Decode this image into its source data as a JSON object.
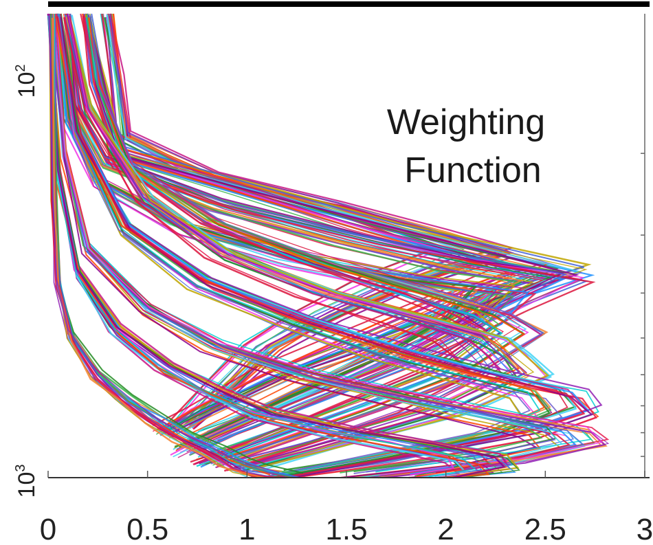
{
  "chart_data": {
    "type": "line",
    "title": "",
    "xlabel": "",
    "ylabel": "",
    "annotation": [
      "Weighting",
      "Function"
    ],
    "xlim": [
      0,
      3
    ],
    "x_scale": "linear",
    "y_scale": "log",
    "y_direction": "reversed",
    "grid": false,
    "legend": "none",
    "x_ticks": [
      {
        "value": 0,
        "label": "0"
      },
      {
        "value": 0.5,
        "label": "0.5"
      },
      {
        "value": 1,
        "label": "1"
      },
      {
        "value": 1.5,
        "label": "1.5"
      },
      {
        "value": 2,
        "label": "2"
      },
      {
        "value": 2.5,
        "label": "2.5"
      },
      {
        "value": 3,
        "label": "3"
      }
    ],
    "y_ticks": [
      {
        "base": "10",
        "exp": "2",
        "label": "10^2"
      },
      {
        "base": "10",
        "exp": "3",
        "label": "10^3"
      }
    ],
    "line_colors": [
      "#e6194b",
      "#3cb44b",
      "#4363d8",
      "#f58231",
      "#911eb4",
      "#42d4f4",
      "#f032e6",
      "#bfa600",
      "#c71585",
      "#1e90ff",
      "#228b22",
      "#ff4500",
      "#8b008b",
      "#00ced1",
      "#dc143c",
      "#6a5acd"
    ],
    "series": [
      {
        "x": [
          0.3,
          0.35,
          0.38,
          0.8,
          1.4,
          1.9,
          2.2,
          1.8,
          1.4,
          1.1,
          0.9,
          0.7
        ],
        "y": [
          100,
          140,
          185,
          225,
          260,
          300,
          330,
          380,
          450,
          530,
          640,
          780
        ]
      },
      {
        "x": [
          0.2,
          0.28,
          0.35,
          1.0,
          1.7,
          2.25,
          2.6,
          2.2,
          1.7,
          1.2,
          0.8,
          0.6
        ],
        "y": [
          100,
          150,
          200,
          240,
          290,
          330,
          360,
          410,
          500,
          600,
          720,
          800
        ]
      },
      {
        "x": [
          0.1,
          0.15,
          0.3,
          0.9,
          1.6,
          2.2,
          2.62,
          2.3,
          1.9,
          1.4,
          1.0,
          0.8
        ],
        "y": [
          100,
          160,
          210,
          260,
          310,
          350,
          375,
          430,
          520,
          640,
          760,
          820
        ]
      },
      {
        "x": [
          0.05,
          0.1,
          0.25,
          0.7,
          1.3,
          1.9,
          2.3,
          2.15,
          1.8,
          1.3,
          0.9,
          0.7
        ],
        "y": [
          100,
          170,
          230,
          290,
          340,
          380,
          400,
          460,
          560,
          680,
          800,
          880
        ]
      },
      {
        "x": [
          0.2,
          0.25,
          0.4,
          0.85,
          1.4,
          1.95,
          2.25,
          2.4,
          2.1,
          1.6,
          1.1,
          0.8
        ],
        "y": [
          100,
          140,
          210,
          280,
          340,
          400,
          440,
          480,
          580,
          700,
          830,
          920
        ]
      },
      {
        "x": [
          0.1,
          0.2,
          0.5,
          0.9,
          1.4,
          1.9,
          2.2,
          2.3,
          2.4,
          2.0,
          1.4,
          1.0
        ],
        "y": [
          100,
          160,
          250,
          330,
          400,
          460,
          500,
          540,
          600,
          720,
          850,
          950
        ]
      },
      {
        "x": [
          0.05,
          0.15,
          0.4,
          0.8,
          1.3,
          1.8,
          2.2,
          2.6,
          2.68,
          2.4,
          1.8,
          1.2
        ],
        "y": [
          100,
          180,
          290,
          380,
          460,
          540,
          600,
          660,
          720,
          800,
          900,
          1000
        ]
      },
      {
        "x": [
          0.02,
          0.08,
          0.2,
          0.5,
          0.85,
          1.3,
          1.8,
          2.2,
          2.6,
          2.67,
          2.3,
          1.6
        ],
        "y": [
          100,
          200,
          320,
          430,
          520,
          600,
          670,
          730,
          790,
          840,
          910,
          1000
        ]
      },
      {
        "x": [
          0.01,
          0.05,
          0.15,
          0.35,
          0.6,
          0.85,
          1.1,
          1.5,
          1.9,
          2.2,
          2.25,
          2.0
        ],
        "y": [
          100,
          220,
          360,
          480,
          580,
          660,
          730,
          800,
          860,
          910,
          960,
          1000
        ]
      },
      {
        "x": [
          0.02,
          0.03,
          0.05,
          0.12,
          0.25,
          0.4,
          0.55,
          0.7,
          0.85,
          0.95,
          1.05,
          1.2
        ],
        "y": [
          100,
          250,
          380,
          500,
          600,
          680,
          750,
          820,
          880,
          930,
          970,
          1000
        ]
      }
    ]
  }
}
